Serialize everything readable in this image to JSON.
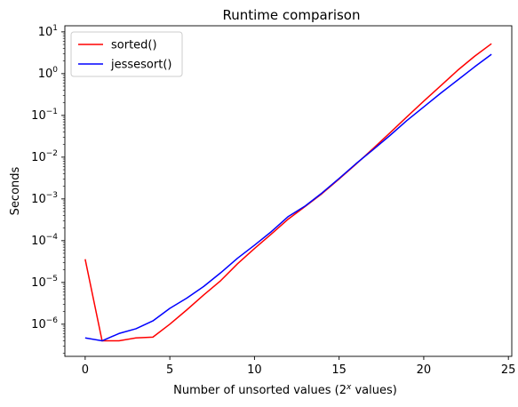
{
  "chart_data": {
    "type": "line",
    "title": "Runtime comparison",
    "xlabel_main": "Number of unsorted values (2",
    "xlabel_sup": "x",
    "xlabel_tail": " values)",
    "ylabel": "Seconds",
    "yscale": "log",
    "xlim": [
      -1.2,
      25.2
    ],
    "ylim": [
      1.7e-07,
      14
    ],
    "xticks": [
      0,
      5,
      10,
      15,
      20,
      25
    ],
    "xtick_labels": [
      "0",
      "5",
      "10",
      "15",
      "20",
      "25"
    ],
    "yticks": [
      1e-06,
      1e-05,
      0.0001,
      0.001,
      0.01,
      0.1,
      1,
      10
    ],
    "ytick_bases": [
      "10",
      "10",
      "10",
      "10",
      "10",
      "10",
      "10",
      "10"
    ],
    "ytick_exps": [
      "−6",
      "−5",
      "−4",
      "−3",
      "−2",
      "−1",
      "0",
      "1"
    ],
    "legend_position": "top-left",
    "grid": false,
    "x": [
      0,
      1,
      2,
      3,
      4,
      5,
      6,
      7,
      8,
      9,
      10,
      11,
      12,
      13,
      14,
      15,
      16,
      17,
      18,
      19,
      20,
      21,
      22,
      23,
      24
    ],
    "series": [
      {
        "name": "sorted()",
        "color": "#ff0000",
        "values": [
          3.6e-05,
          4e-07,
          4e-07,
          4.7e-07,
          4.9e-07,
          1e-06,
          2.2e-06,
          5e-06,
          1.1e-05,
          2.8e-05,
          6.5e-05,
          0.000145,
          0.00033,
          0.00066,
          0.00135,
          0.003,
          0.0068,
          0.016,
          0.038,
          0.092,
          0.22,
          0.51,
          1.2,
          2.6,
          5.2
        ]
      },
      {
        "name": "jessesort()",
        "color": "#0000ff",
        "values": [
          4.7e-07,
          4e-07,
          6e-07,
          7.8e-07,
          1.2e-06,
          2.4e-06,
          4.2e-06,
          8e-06,
          1.7e-05,
          3.8e-05,
          7.8e-05,
          0.000165,
          0.00038,
          0.00068,
          0.0014,
          0.0031,
          0.007,
          0.015,
          0.033,
          0.075,
          0.16,
          0.34,
          0.7,
          1.45,
          2.9
        ]
      }
    ]
  }
}
